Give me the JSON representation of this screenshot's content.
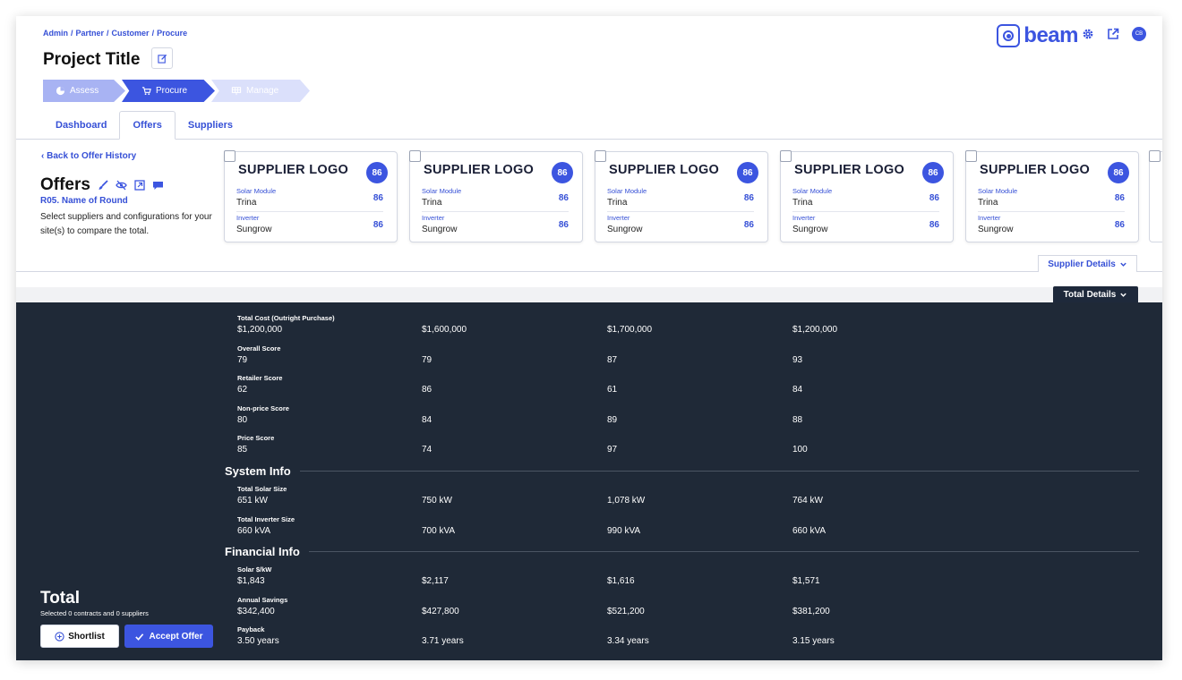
{
  "breadcrumb": [
    "Admin",
    "Partner",
    "Customer",
    "Procure"
  ],
  "breadcrumb_sep": "/",
  "project_title": "Project Title",
  "steps": [
    {
      "label": "Assess",
      "icon": "pie-chart-icon"
    },
    {
      "label": "Procure",
      "icon": "cart-icon"
    },
    {
      "label": "Manage",
      "icon": "solar-panel-icon"
    }
  ],
  "tabs": [
    "Dashboard",
    "Offers",
    "Suppliers"
  ],
  "active_tab": "Offers",
  "brand": {
    "name": "beam",
    "color": "#3c55e0"
  },
  "avatar_initials": "CB",
  "back_link": "Back to Offer History",
  "offers": {
    "title": "Offers",
    "round": "R05. Name of Round",
    "description": "Select suppliers and configurations for your site(s) to compare the total."
  },
  "cards": [
    {
      "logo": "SUPPLIER LOGO",
      "score": "86",
      "rows": [
        {
          "label": "Solar Module",
          "value": "Trina",
          "score": "86"
        },
        {
          "label": "Inverter",
          "value": "Sungrow",
          "score": "86"
        }
      ]
    },
    {
      "logo": "SUPPLIER LOGO",
      "score": "86",
      "rows": [
        {
          "label": "Solar Module",
          "value": "Trina",
          "score": "86"
        },
        {
          "label": "Inverter",
          "value": "Sungrow",
          "score": "86"
        }
      ]
    },
    {
      "logo": "SUPPLIER LOGO",
      "score": "86",
      "rows": [
        {
          "label": "Solar Module",
          "value": "Trina",
          "score": "86"
        },
        {
          "label": "Inverter",
          "value": "Sungrow",
          "score": "86"
        }
      ]
    },
    {
      "logo": "SUPPLIER LOGO",
      "score": "86",
      "rows": [
        {
          "label": "Solar Module",
          "value": "Trina",
          "score": "86"
        },
        {
          "label": "Inverter",
          "value": "Sungrow",
          "score": "86"
        }
      ]
    },
    {
      "logo": "SUPPLIER LOGO",
      "score": "86",
      "rows": [
        {
          "label": "Solar Module",
          "value": "Trina",
          "score": "86"
        },
        {
          "label": "Inverter",
          "value": "Sungrow",
          "score": "86"
        }
      ]
    }
  ],
  "supplier_details_label": "Supplier Details",
  "total_details_label": "Total Details",
  "metrics_main": [
    {
      "label": "Total Cost (Outright Purchase)",
      "values": [
        "$1,200,000",
        "$1,600,000",
        "$1,700,000",
        "$1,200,000"
      ]
    },
    {
      "label": "Overall Score",
      "values": [
        "79",
        "79",
        "87",
        "93"
      ]
    },
    {
      "label": "Retailer Score",
      "values": [
        "62",
        "86",
        "61",
        "84"
      ]
    },
    {
      "label": "Non-price Score",
      "values": [
        "80",
        "84",
        "89",
        "88"
      ]
    },
    {
      "label": "Price Score",
      "values": [
        "85",
        "74",
        "97",
        "100"
      ]
    }
  ],
  "system_info": {
    "title": "System Info",
    "metrics": [
      {
        "label": "Total Solar Size",
        "values": [
          "651 kW",
          "750 kW",
          "1,078 kW",
          "764 kW"
        ]
      },
      {
        "label": "Total Inverter Size",
        "values": [
          "660 kVA",
          "700 kVA",
          "990 kVA",
          "660 kVA"
        ]
      }
    ]
  },
  "financial_info": {
    "title": "Financial Info",
    "metrics": [
      {
        "label": "Solar $/kW",
        "values": [
          "$1,843",
          "$2,117",
          "$1,616",
          "$1,571"
        ]
      },
      {
        "label": "Annual Savings",
        "values": [
          "$342,400",
          "$427,800",
          "$521,200",
          "$381,200"
        ]
      },
      {
        "label": "Payback",
        "values": [
          "3.50 years",
          "3.71 years",
          "3.34 years",
          "3.15 years"
        ]
      }
    ]
  },
  "total": {
    "title": "Total",
    "subtitle": "Selected 0 contracts and 0 suppliers",
    "shortlist_label": "Shortlist",
    "accept_label": "Accept Offer"
  }
}
